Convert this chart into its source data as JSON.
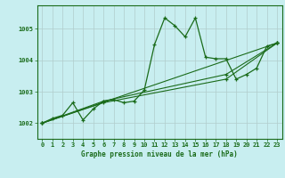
{
  "title": "Graphe pression niveau de la mer (hPa)",
  "background_color": "#c8eef0",
  "grid_color": "#b0cccc",
  "line_color": "#1a6b1a",
  "xlim": [
    -0.5,
    23.5
  ],
  "ylim": [
    1001.5,
    1005.75
  ],
  "yticks": [
    1002,
    1003,
    1004,
    1005
  ],
  "xticks": [
    0,
    1,
    2,
    3,
    4,
    5,
    6,
    7,
    8,
    9,
    10,
    11,
    12,
    13,
    14,
    15,
    16,
    17,
    18,
    19,
    20,
    21,
    22,
    23
  ],
  "series_main": {
    "x": [
      0,
      1,
      2,
      3,
      4,
      5,
      6,
      7,
      8,
      9,
      10,
      11,
      12,
      13,
      14,
      15,
      16,
      17,
      18,
      19,
      20,
      21,
      22,
      23
    ],
    "y": [
      1002.0,
      1002.15,
      1002.25,
      1002.65,
      1002.1,
      1002.45,
      1002.7,
      1002.75,
      1002.65,
      1002.7,
      1003.05,
      1004.5,
      1005.35,
      1005.1,
      1004.75,
      1005.35,
      1004.1,
      1004.05,
      1004.05,
      1003.4,
      1003.55,
      1003.75,
      1004.45,
      1004.55
    ]
  },
  "series_line1": {
    "x": [
      0,
      23
    ],
    "y": [
      1002.0,
      1004.55
    ]
  },
  "series_line2": {
    "x": [
      0,
      6,
      18,
      23
    ],
    "y": [
      1002.0,
      1002.65,
      1003.4,
      1004.55
    ]
  },
  "series_line3": {
    "x": [
      0,
      6,
      18,
      23
    ],
    "y": [
      1002.0,
      1002.7,
      1003.55,
      1004.55
    ]
  }
}
